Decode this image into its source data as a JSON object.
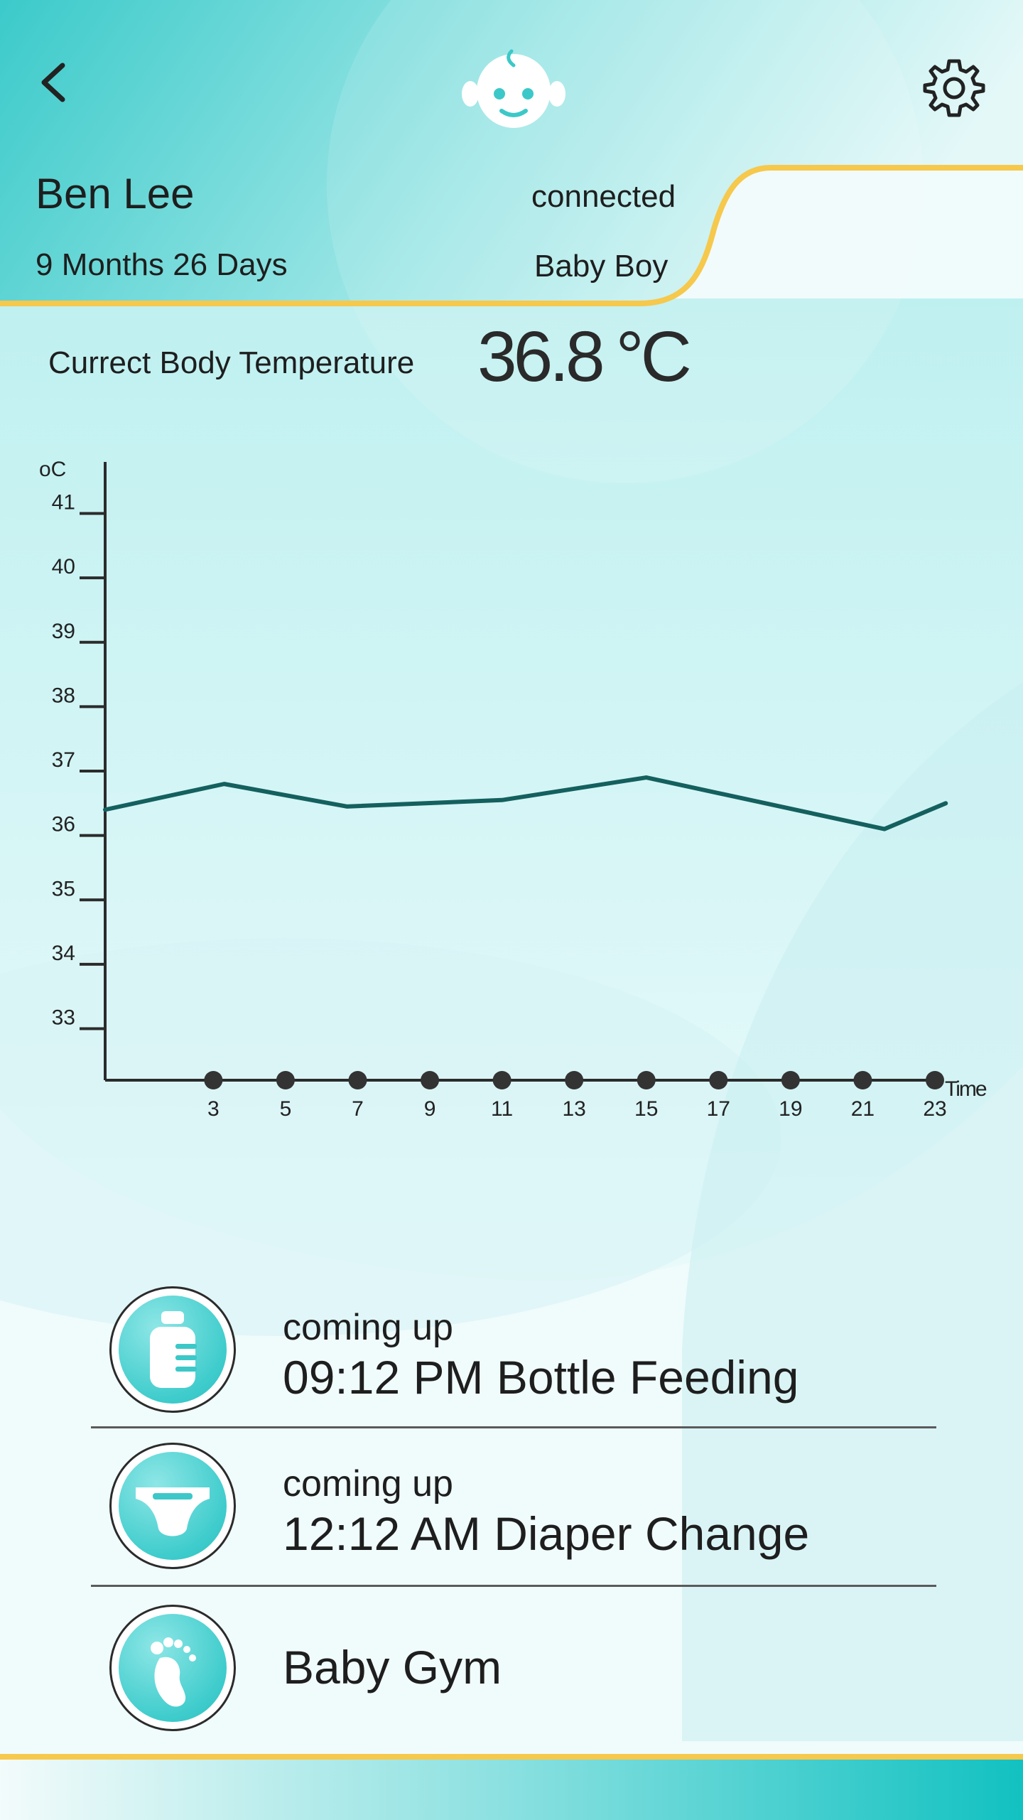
{
  "header": {
    "profile_name": "Ben Lee",
    "age": "9 Months 26 Days",
    "connection_status": "connected",
    "gender": "Baby Boy"
  },
  "temperature": {
    "label": "Currect Body Temperature",
    "value": "36.8",
    "unit": "°C"
  },
  "colors": {
    "teal": "#3cc8c8",
    "accent_yellow": "#f6c84c",
    "line": "#14605f",
    "text": "#1e1e1e"
  },
  "chart_data": {
    "type": "line",
    "ylabel": "oC",
    "xlabel": "Time",
    "ylim": [
      32.2,
      41.8
    ],
    "yticks": [
      33,
      34,
      35,
      36,
      37,
      38,
      39,
      40,
      41
    ],
    "xticks": [
      3,
      5,
      7,
      9,
      11,
      13,
      15,
      17,
      19,
      21,
      23
    ],
    "xlim": [
      0,
      23
    ],
    "series": [
      {
        "x": [
          0,
          3.3,
          6.7,
          11,
          15,
          21.6,
          23.3
        ],
        "y": [
          36.4,
          36.8,
          36.45,
          36.55,
          36.9,
          36.1,
          36.5
        ]
      }
    ],
    "grid": false
  },
  "schedule": [
    {
      "label": "coming up",
      "title": "09:12 PM Bottle Feeding",
      "icon": "bottle-icon"
    },
    {
      "label": "coming up",
      "title": "12:12 AM Diaper Change",
      "icon": "diaper-icon"
    },
    {
      "label": "",
      "title": "Baby Gym",
      "icon": "foot-icon"
    }
  ],
  "icons": {
    "back": "chevron-left-icon",
    "logo": "baby-face-icon",
    "settings": "gear-icon"
  }
}
